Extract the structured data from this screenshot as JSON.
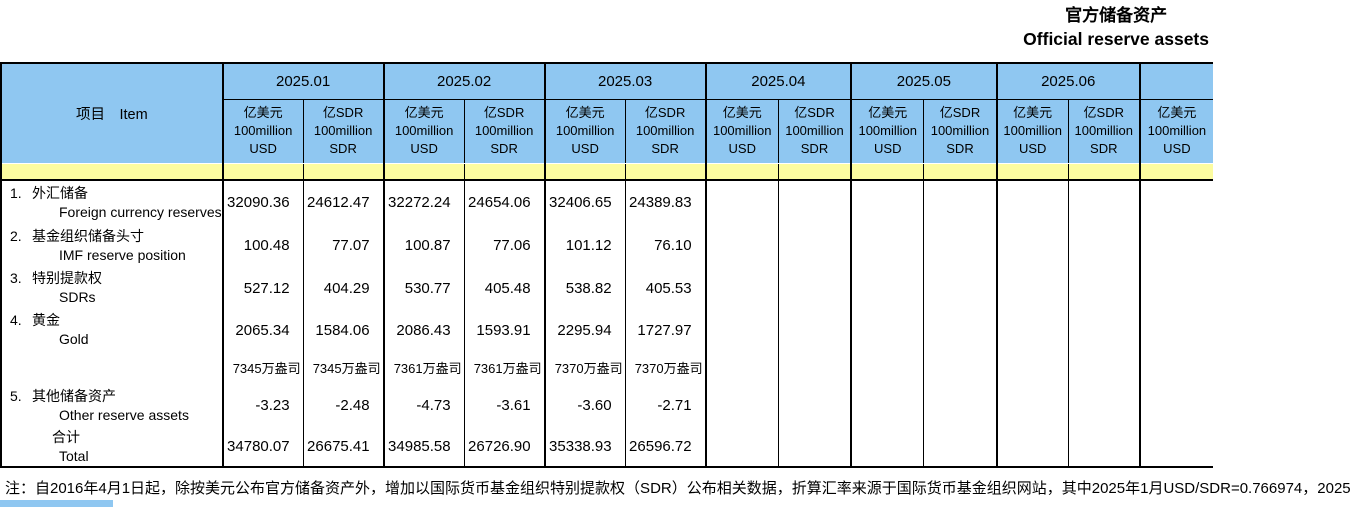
{
  "title": {
    "zh": "官方储备资产",
    "en": "Official reserve assets"
  },
  "table": {
    "item_header": "项目　Item",
    "months": [
      "2025.01",
      "2025.02",
      "2025.03",
      "2025.04",
      "2025.05",
      "2025.06"
    ],
    "partial_month": "",
    "unit_usd": {
      "l1": "亿美元",
      "l2": "100million",
      "l3": "USD"
    },
    "unit_sdr": {
      "l1": "亿SDR",
      "l2": "100million",
      "l3": "SDR"
    },
    "rows": [
      {
        "no": "1.",
        "zh": "外汇储备",
        "en": "Foreign currency reserves",
        "values": [
          "32090.36",
          "24612.47",
          "32272.24",
          "24654.06",
          "32406.65",
          "24389.83",
          "",
          "",
          "",
          "",
          "",
          ""
        ]
      },
      {
        "no": "2.",
        "zh": "基金组织储备头寸",
        "en": "IMF reserve position",
        "values": [
          "100.48",
          "77.07",
          "100.87",
          "77.06",
          "101.12",
          "76.10",
          "",
          "",
          "",
          "",
          "",
          ""
        ]
      },
      {
        "no": "3.",
        "zh": "特别提款权",
        "en": "SDRs",
        "values": [
          "527.12",
          "404.29",
          "530.77",
          "405.48",
          "538.82",
          "405.53",
          "",
          "",
          "",
          "",
          "",
          ""
        ]
      },
      {
        "no": "4.",
        "zh": "黄金",
        "en": "Gold",
        "values": [
          "2065.34",
          "1584.06",
          "2086.43",
          "1593.91",
          "2295.94",
          "1727.97",
          "",
          "",
          "",
          "",
          "",
          ""
        ]
      },
      {
        "no": "",
        "zh": "",
        "en": "",
        "unit_row": true,
        "values": [
          "7345万盎司",
          "7345万盎司",
          "7361万盎司",
          "7361万盎司",
          "7370万盎司",
          "7370万盎司",
          "",
          "",
          "",
          "",
          "",
          ""
        ]
      },
      {
        "no": "5.",
        "zh": "其他储备资产",
        "en": "Other reserve assets",
        "values": [
          "-3.23",
          "-2.48",
          "-4.73",
          "-3.61",
          "-3.60",
          "-2.71",
          "",
          "",
          "",
          "",
          "",
          ""
        ]
      },
      {
        "no": "",
        "zh": "合计",
        "en": "Total",
        "total_row": true,
        "values": [
          "34780.07",
          "26675.41",
          "34985.58",
          "26726.90",
          "35338.93",
          "26596.72",
          "",
          "",
          "",
          "",
          "",
          ""
        ]
      }
    ]
  },
  "note": "注：自2016年4月1日起，除按美元公布官方储备资产外，增加以国际货币基金组织特别提款权（SDR）公布相关数据，折算汇率来源于国际货币基金组织网站，其中2025年1月USD/SDR=0.766974，2025",
  "colors": {
    "header_blue": "#8FC7F1",
    "separator_yellow": "#FCFCA0"
  }
}
